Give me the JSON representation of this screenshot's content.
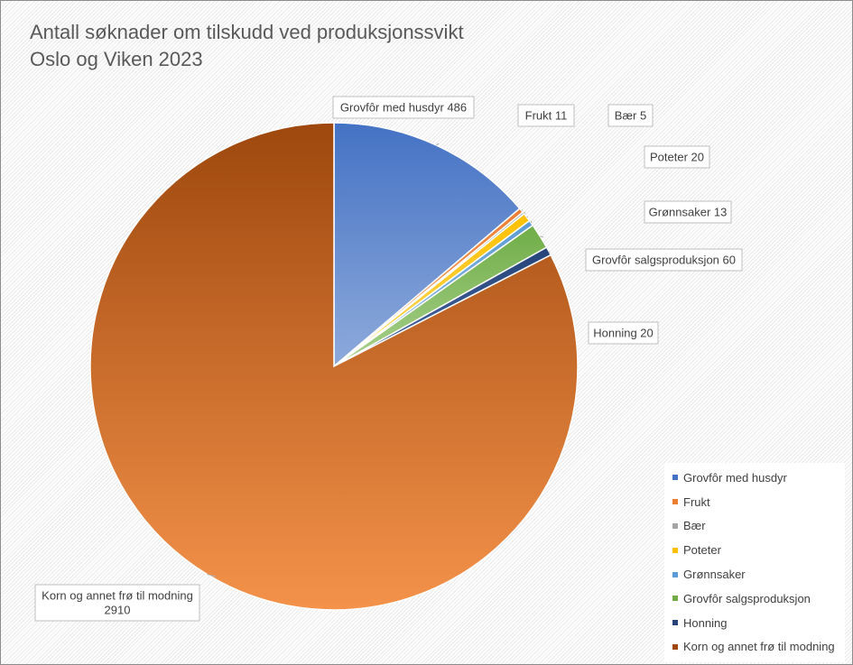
{
  "chart_data": {
    "type": "pie",
    "title_lines": [
      "Antall søknader om tilskudd ved produksjonssvikt",
      "Oslo og Viken 2023"
    ],
    "slices": [
      {
        "name": "Grovfôr med husdyr",
        "value": 486,
        "label": "Grovfôr med husdyr 486",
        "color": "#4472c4",
        "color_light": "#8eaadb"
      },
      {
        "name": "Frukt",
        "value": 11,
        "label": "Frukt 11",
        "color": "#ed7d31",
        "color_light": "#f4b183"
      },
      {
        "name": "Bær",
        "value": 5,
        "label": "Bær 5",
        "color": "#a5a5a5",
        "color_light": "#c9c9c9"
      },
      {
        "name": "Poteter",
        "value": 20,
        "label": "Poteter 20",
        "color": "#ffc000",
        "color_light": "#ffd966"
      },
      {
        "name": "Grønnsaker",
        "value": 13,
        "label": "Grønnsaker 13",
        "color": "#5b9bd5",
        "color_light": "#9dc3e6"
      },
      {
        "name": "Grovfôr salgsproduksjon",
        "value": 60,
        "label": "Grovfôr salgsproduksjon 60",
        "color": "#70ad47",
        "color_light": "#a9d18e"
      },
      {
        "name": "Honning",
        "value": 20,
        "label": "Honning 20",
        "color": "#264478",
        "color_light": "#4a6aa6"
      },
      {
        "name": "Korn og annet frø til modning",
        "value": 2910,
        "label": "Korn og annet frø til modning\n2910",
        "color": "#9e480e",
        "color_light": "#f4924a"
      }
    ],
    "legend_position": "bottom-right",
    "grid": false
  }
}
